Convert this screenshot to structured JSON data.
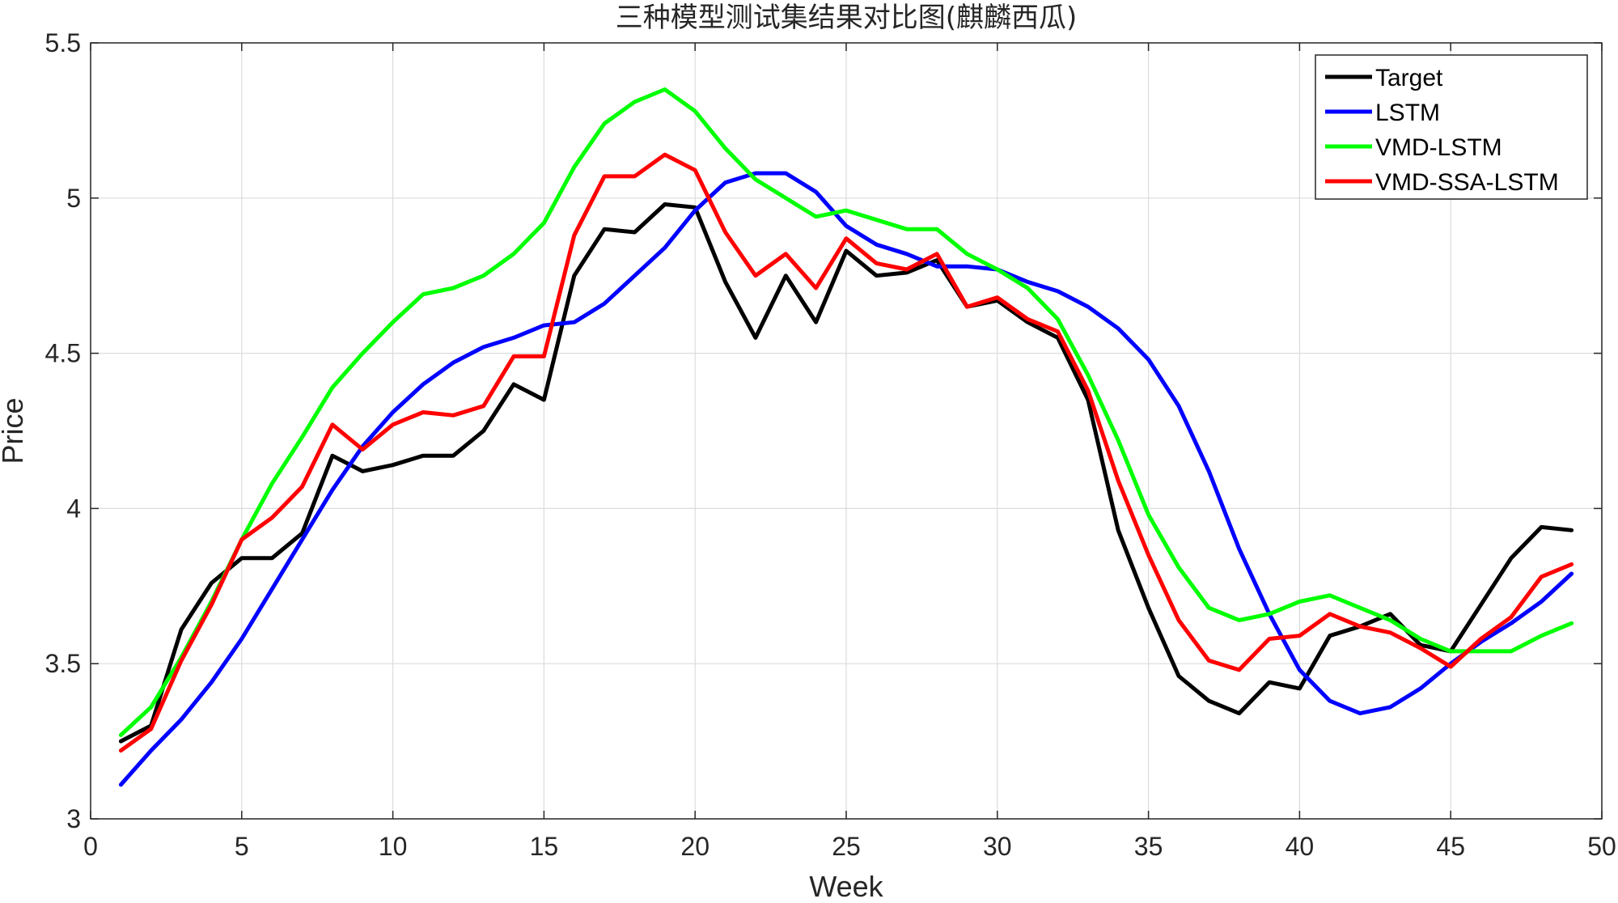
{
  "chart_data": {
    "type": "line",
    "title": "三种模型测试集结果对比图(麒麟西瓜)",
    "xlabel": "Week",
    "ylabel": "Price",
    "xlim": [
      0,
      50
    ],
    "ylim": [
      3,
      5.5
    ],
    "xticks": [
      "0",
      "5",
      "10",
      "15",
      "20",
      "25",
      "30",
      "35",
      "40",
      "45",
      "50"
    ],
    "yticks": [
      "3",
      "3.5",
      "4",
      "4.5",
      "5",
      "5.5"
    ],
    "grid": true,
    "legend_position": "top-right",
    "x": [
      1,
      2,
      3,
      4,
      5,
      6,
      7,
      8,
      9,
      10,
      11,
      12,
      13,
      14,
      15,
      16,
      17,
      18,
      19,
      20,
      21,
      22,
      23,
      24,
      25,
      26,
      27,
      28,
      29,
      30,
      31,
      32,
      33,
      34,
      35,
      36,
      37,
      38,
      39,
      40,
      41,
      42,
      43,
      44,
      45,
      46,
      47,
      48,
      49
    ],
    "series": [
      {
        "name": "Target",
        "color": "#000000",
        "values": [
          3.25,
          3.3,
          3.61,
          3.76,
          3.84,
          3.84,
          3.92,
          4.17,
          4.12,
          4.14,
          4.17,
          4.17,
          4.25,
          4.4,
          4.35,
          4.75,
          4.9,
          4.89,
          4.98,
          4.97,
          4.73,
          4.55,
          4.75,
          4.6,
          4.83,
          4.75,
          4.76,
          4.8,
          4.65,
          4.67,
          4.6,
          4.55,
          4.35,
          3.93,
          3.68,
          3.46,
          3.38,
          3.34,
          3.44,
          3.42,
          3.59,
          3.62,
          3.66,
          3.56,
          3.54,
          3.69,
          3.84,
          3.94,
          3.93
        ]
      },
      {
        "name": "LSTM",
        "color": "#0000ff",
        "values": [
          3.11,
          3.22,
          3.32,
          3.44,
          3.58,
          3.74,
          3.9,
          4.06,
          4.2,
          4.31,
          4.4,
          4.47,
          4.52,
          4.55,
          4.59,
          4.6,
          4.66,
          4.75,
          4.84,
          4.96,
          5.05,
          5.08,
          5.08,
          5.02,
          4.91,
          4.85,
          4.82,
          4.78,
          4.78,
          4.77,
          4.73,
          4.7,
          4.65,
          4.58,
          4.48,
          4.33,
          4.12,
          3.87,
          3.66,
          3.48,
          3.38,
          3.34,
          3.36,
          3.42,
          3.5,
          3.57,
          3.63,
          3.7,
          3.79
        ]
      },
      {
        "name": "VMD-LSTM",
        "color": "#00ff00",
        "values": [
          3.27,
          3.36,
          3.52,
          3.7,
          3.9,
          4.08,
          4.23,
          4.39,
          4.5,
          4.6,
          4.69,
          4.71,
          4.75,
          4.82,
          4.92,
          5.1,
          5.24,
          5.31,
          5.35,
          5.28,
          5.16,
          5.06,
          5.0,
          4.94,
          4.96,
          4.93,
          4.9,
          4.9,
          4.82,
          4.77,
          4.71,
          4.61,
          4.43,
          4.22,
          3.98,
          3.81,
          3.68,
          3.64,
          3.66,
          3.7,
          3.72,
          3.68,
          3.64,
          3.58,
          3.54,
          3.54,
          3.54,
          3.59,
          3.63
        ]
      },
      {
        "name": "VMD-SSA-LSTM",
        "color": "#ff0000",
        "values": [
          3.22,
          3.29,
          3.51,
          3.69,
          3.9,
          3.97,
          4.07,
          4.27,
          4.19,
          4.27,
          4.31,
          4.3,
          4.33,
          4.49,
          4.49,
          4.88,
          5.07,
          5.07,
          5.14,
          5.09,
          4.89,
          4.75,
          4.82,
          4.71,
          4.87,
          4.79,
          4.77,
          4.82,
          4.65,
          4.68,
          4.61,
          4.57,
          4.38,
          4.09,
          3.85,
          3.64,
          3.51,
          3.48,
          3.58,
          3.59,
          3.66,
          3.62,
          3.6,
          3.55,
          3.49,
          3.58,
          3.65,
          3.78,
          3.82
        ]
      }
    ]
  }
}
